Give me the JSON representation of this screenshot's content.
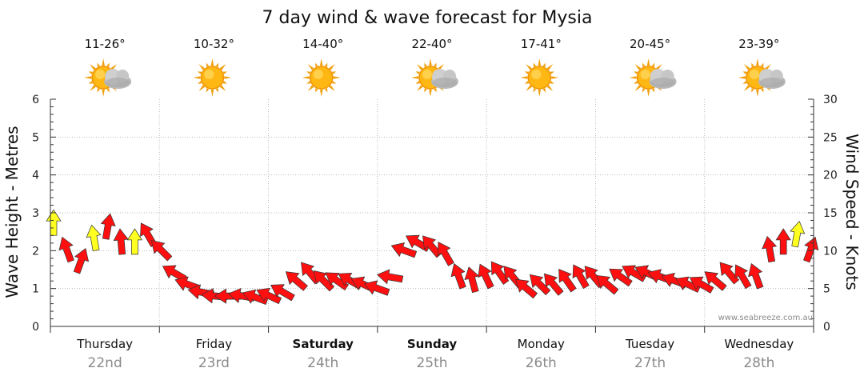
{
  "chart_data": {
    "type": "line",
    "title": "7 day wind & wave forecast for Mysia",
    "ylabel_left": "Wave Height - Metres",
    "ylabel_right": "Wind Speed - Knots",
    "ylim_left": [
      0,
      6
    ],
    "ylim_right": [
      0,
      30
    ],
    "yticks_left": [
      "0",
      "1",
      "2",
      "3",
      "4",
      "5",
      "6"
    ],
    "yticks_right": [
      "0",
      "5",
      "10",
      "15",
      "20",
      "25",
      "30"
    ],
    "grid": true,
    "credit": "www.seabreeze.com.au",
    "days": [
      {
        "day": "Thursday",
        "date": "22nd",
        "temp": "11-26°",
        "icon": "partly-cloudy-icon",
        "bold": false
      },
      {
        "day": "Friday",
        "date": "23rd",
        "temp": "10-32°",
        "icon": "sun-icon",
        "bold": false
      },
      {
        "day": "Saturday",
        "date": "24th",
        "temp": "14-40°",
        "icon": "sun-icon",
        "bold": true
      },
      {
        "day": "Sunday",
        "date": "25th",
        "temp": "22-40°",
        "icon": "partly-cloudy-icon",
        "bold": true
      },
      {
        "day": "Monday",
        "date": "26th",
        "temp": "17-41°",
        "icon": "sun-icon",
        "bold": false
      },
      {
        "day": "Tuesday",
        "date": "27th",
        "temp": "20-45°",
        "icon": "partly-cloudy-icon",
        "bold": false
      },
      {
        "day": "Wednesday",
        "date": "28th",
        "temp": "23-39°",
        "icon": "partly-cloudy-icon",
        "bold": false
      }
    ],
    "wind_series": {
      "name": "",
      "x_hours": [
        0,
        3,
        6,
        9,
        12,
        15,
        18,
        21,
        24,
        27,
        30,
        33,
        36,
        39,
        42,
        45,
        48,
        51,
        54,
        57,
        60,
        63,
        66,
        69,
        72,
        75,
        78,
        81,
        84,
        87,
        90,
        93,
        96,
        99,
        102,
        105,
        108,
        111,
        114,
        117,
        120,
        123,
        126,
        129,
        132,
        135,
        138,
        141,
        144,
        147,
        150,
        153,
        156,
        159,
        162,
        165,
        168
      ],
      "knots": [
        13.5,
        10,
        8.5,
        11.5,
        13,
        11,
        11,
        12,
        10,
        7,
        5.5,
        4.5,
        4,
        4,
        4,
        3.8,
        4,
        4.5,
        6,
        7,
        6,
        6,
        6,
        5.5,
        5,
        6.5,
        10,
        11,
        10.5,
        9.5,
        6.5,
        6,
        6.5,
        7,
        6.5,
        5,
        5.5,
        5.5,
        6,
        6.5,
        6.5,
        5.5,
        6.5,
        7,
        7,
        6.5,
        6,
        5.5,
        5.5,
        6,
        7,
        6.5,
        6.5,
        10,
        11,
        12,
        10
      ],
      "arrow_color": [
        "yellow",
        "red",
        "red",
        "yellow",
        "red",
        "red",
        "yellow",
        "red",
        "red",
        "red",
        "red",
        "red",
        "red",
        "red",
        "red",
        "red",
        "red",
        "red",
        "red",
        "red",
        "red",
        "red",
        "red",
        "red",
        "red",
        "red",
        "red",
        "red",
        "red",
        "red",
        "red",
        "red",
        "red",
        "red",
        "red",
        "red",
        "red",
        "red",
        "red",
        "red",
        "red",
        "red",
        "red",
        "red",
        "red",
        "red",
        "red",
        "red",
        "red",
        "red",
        "red",
        "red",
        "red",
        "red",
        "red",
        "yellow",
        "red"
      ],
      "direction_deg": [
        180,
        160,
        200,
        170,
        190,
        175,
        180,
        150,
        135,
        120,
        110,
        100,
        95,
        90,
        100,
        110,
        115,
        120,
        130,
        140,
        135,
        125,
        120,
        115,
        110,
        100,
        110,
        120,
        140,
        150,
        160,
        165,
        155,
        145,
        140,
        130,
        135,
        140,
        145,
        150,
        140,
        130,
        125,
        120,
        115,
        110,
        110,
        115,
        120,
        130,
        140,
        150,
        160,
        170,
        180,
        190,
        200
      ]
    }
  }
}
